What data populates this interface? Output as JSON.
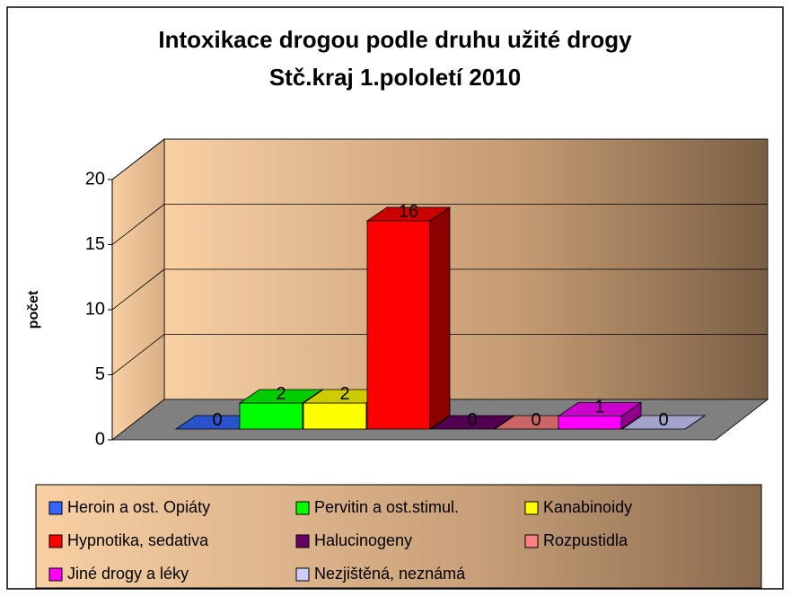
{
  "chart_data": {
    "type": "bar3d",
    "title": [
      "Intoxikace drogou podle druhu užité drogy",
      "Stč.kraj 1.pololetí 2010"
    ],
    "y_label": "počet",
    "categories": [
      "Heroin a ost. Opiáty",
      "Pervitin a ost.stimul.",
      "Kanabinoidy",
      "Hypnotika, sedativa",
      "Halucinogeny",
      "Rozpustidla",
      "Jiné drogy a léky",
      "Nezjištěná, neznámá"
    ],
    "values": [
      0,
      2,
      2,
      16,
      0,
      0,
      1,
      0
    ],
    "colors": [
      "#3366ff",
      "#00ff00",
      "#ffff00",
      "#ff0000",
      "#660066",
      "#ff8080",
      "#ff00ff",
      "#ccccff"
    ],
    "ylim": [
      0,
      20
    ],
    "yticks": [
      0,
      5,
      10,
      15,
      20
    ],
    "grid": true
  }
}
